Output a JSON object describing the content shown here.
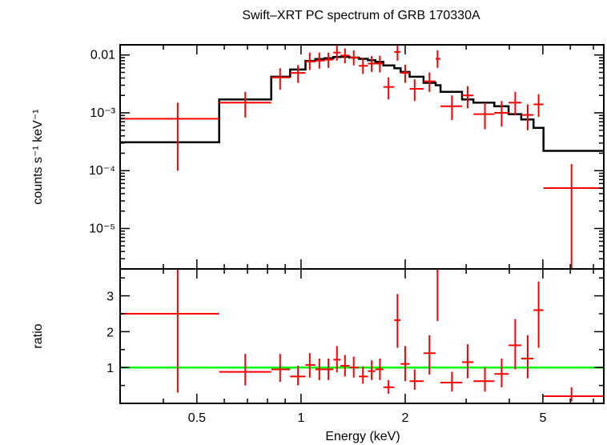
{
  "chart_data": [
    {
      "type": "scatter",
      "panel": "spectrum",
      "title": "Swift–XRT PC spectrum of GRB 170330A",
      "ylabel": "counts s⁻¹ keV⁻¹",
      "y_scale": "log",
      "x_scale": "log",
      "xlim": [
        0.3,
        7.5
      ],
      "ylim": [
        2e-06,
        0.015
      ],
      "y_ticks": [
        {
          "value": 1e-05,
          "label": "10⁻⁵"
        },
        {
          "value": 0.0001,
          "label": "10⁻⁴"
        },
        {
          "value": 0.001,
          "label": "10⁻³"
        },
        {
          "value": 0.01,
          "label": "0.01"
        }
      ],
      "data_color": "#ff0000",
      "model_color": "#000000",
      "data_points": [
        {
          "x": 0.44,
          "xlo": 0.3,
          "xhi": 0.58,
          "y": 0.00079,
          "ylo": 0.0001,
          "yhi": 0.0015
        },
        {
          "x": 0.69,
          "xlo": 0.58,
          "xhi": 0.82,
          "y": 0.0015,
          "ylo": 0.00083,
          "yhi": 0.0023
        },
        {
          "x": 0.87,
          "xlo": 0.82,
          "xhi": 0.93,
          "y": 0.0041,
          "ylo": 0.0025,
          "yhi": 0.0059
        },
        {
          "x": 0.98,
          "xlo": 0.93,
          "xhi": 1.03,
          "y": 0.0049,
          "ylo": 0.0033,
          "yhi": 0.0067
        },
        {
          "x": 1.06,
          "xlo": 1.03,
          "xhi": 1.1,
          "y": 0.0077,
          "ylo": 0.0055,
          "yhi": 0.011
        },
        {
          "x": 1.13,
          "xlo": 1.1,
          "xhi": 1.17,
          "y": 0.008,
          "ylo": 0.0058,
          "yhi": 0.011
        },
        {
          "x": 1.2,
          "xlo": 1.17,
          "xhi": 1.24,
          "y": 0.0083,
          "ylo": 0.006,
          "yhi": 0.011
        },
        {
          "x": 1.27,
          "xlo": 1.24,
          "xhi": 1.3,
          "y": 0.011,
          "ylo": 0.008,
          "yhi": 0.015
        },
        {
          "x": 1.34,
          "xlo": 1.3,
          "xhi": 1.38,
          "y": 0.0098,
          "ylo": 0.0072,
          "yhi": 0.013
        },
        {
          "x": 1.42,
          "xlo": 1.38,
          "xhi": 1.47,
          "y": 0.009,
          "ylo": 0.0066,
          "yhi": 0.012
        },
        {
          "x": 1.51,
          "xlo": 1.47,
          "xhi": 1.56,
          "y": 0.0065,
          "ylo": 0.0047,
          "yhi": 0.0088
        },
        {
          "x": 1.6,
          "xlo": 1.56,
          "xhi": 1.64,
          "y": 0.0071,
          "ylo": 0.0051,
          "yhi": 0.0096
        },
        {
          "x": 1.69,
          "xlo": 1.64,
          "xhi": 1.73,
          "y": 0.0071,
          "ylo": 0.005,
          "yhi": 0.0097
        },
        {
          "x": 1.79,
          "xlo": 1.73,
          "xhi": 1.86,
          "y": 0.0028,
          "ylo": 0.0017,
          "yhi": 0.0041
        },
        {
          "x": 1.9,
          "xlo": 1.86,
          "xhi": 1.94,
          "y": 0.0113,
          "ylo": 0.008,
          "yhi": 0.015
        },
        {
          "x": 2.0,
          "xlo": 1.94,
          "xhi": 2.06,
          "y": 0.0049,
          "ylo": 0.0033,
          "yhi": 0.0068
        },
        {
          "x": 2.13,
          "xlo": 2.06,
          "xhi": 2.26,
          "y": 0.0026,
          "ylo": 0.0016,
          "yhi": 0.0038
        },
        {
          "x": 2.35,
          "xlo": 2.26,
          "xhi": 2.45,
          "y": 0.0035,
          "ylo": 0.0023,
          "yhi": 0.005
        },
        {
          "x": 2.48,
          "xlo": 2.45,
          "xhi": 2.53,
          "y": 0.0086,
          "ylo": 0.006,
          "yhi": 0.012
        },
        {
          "x": 2.73,
          "xlo": 2.53,
          "xhi": 2.92,
          "y": 0.0013,
          "ylo": 0.00075,
          "yhi": 0.002
        },
        {
          "x": 3.03,
          "xlo": 2.92,
          "xhi": 3.15,
          "y": 0.002,
          "ylo": 0.0012,
          "yhi": 0.0029
        },
        {
          "x": 3.4,
          "xlo": 3.15,
          "xhi": 3.62,
          "y": 0.00095,
          "ylo": 0.00052,
          "yhi": 0.0015
        },
        {
          "x": 3.8,
          "xlo": 3.62,
          "xhi": 3.98,
          "y": 0.001,
          "ylo": 0.00058,
          "yhi": 0.0016
        },
        {
          "x": 4.16,
          "xlo": 3.98,
          "xhi": 4.33,
          "y": 0.0015,
          "ylo": 0.0009,
          "yhi": 0.0023
        },
        {
          "x": 4.52,
          "xlo": 4.33,
          "xhi": 4.7,
          "y": 0.00092,
          "ylo": 0.0005,
          "yhi": 0.0014
        },
        {
          "x": 4.86,
          "xlo": 4.7,
          "xhi": 5.02,
          "y": 0.0014,
          "ylo": 0.00085,
          "yhi": 0.0021
        },
        {
          "x": 6.05,
          "xlo": 5.02,
          "xhi": 7.5,
          "y": 5e-05,
          "ylo": 1e-06,
          "yhi": 0.00013
        }
      ],
      "model_steps": [
        {
          "xlo": 0.3,
          "xhi": 0.58,
          "y": 0.00031
        },
        {
          "xlo": 0.58,
          "xhi": 0.82,
          "y": 0.0017
        },
        {
          "xlo": 0.82,
          "xhi": 0.93,
          "y": 0.0042
        },
        {
          "xlo": 0.93,
          "xhi": 1.03,
          "y": 0.0056
        },
        {
          "xlo": 1.03,
          "xhi": 1.1,
          "y": 0.0079
        },
        {
          "xlo": 1.1,
          "xhi": 1.17,
          "y": 0.0085
        },
        {
          "xlo": 1.17,
          "xhi": 1.24,
          "y": 0.0088
        },
        {
          "xlo": 1.24,
          "xhi": 1.3,
          "y": 0.0092
        },
        {
          "xlo": 1.3,
          "xhi": 1.38,
          "y": 0.0093
        },
        {
          "xlo": 1.38,
          "xhi": 1.47,
          "y": 0.009
        },
        {
          "xlo": 1.47,
          "xhi": 1.56,
          "y": 0.0086
        },
        {
          "xlo": 1.56,
          "xhi": 1.64,
          "y": 0.0081
        },
        {
          "xlo": 1.64,
          "xhi": 1.73,
          "y": 0.0076
        },
        {
          "xlo": 1.73,
          "xhi": 1.86,
          "y": 0.0066
        },
        {
          "xlo": 1.86,
          "xhi": 1.94,
          "y": 0.0059
        },
        {
          "xlo": 1.94,
          "xhi": 2.06,
          "y": 0.0051
        },
        {
          "xlo": 2.06,
          "xhi": 2.26,
          "y": 0.0042
        },
        {
          "xlo": 2.26,
          "xhi": 2.45,
          "y": 0.0033
        },
        {
          "xlo": 2.45,
          "xhi": 2.53,
          "y": 0.003
        },
        {
          "xlo": 2.53,
          "xhi": 2.92,
          "y": 0.0023
        },
        {
          "xlo": 2.92,
          "xhi": 3.15,
          "y": 0.0017
        },
        {
          "xlo": 3.15,
          "xhi": 3.62,
          "y": 0.0015
        },
        {
          "xlo": 3.62,
          "xhi": 3.98,
          "y": 0.0013
        },
        {
          "xlo": 3.98,
          "xhi": 4.33,
          "y": 0.00095
        },
        {
          "xlo": 4.33,
          "xhi": 4.7,
          "y": 0.00077
        },
        {
          "xlo": 4.7,
          "xhi": 5.02,
          "y": 0.00055
        },
        {
          "xlo": 5.02,
          "xhi": 7.5,
          "y": 0.00022
        }
      ]
    },
    {
      "type": "scatter",
      "panel": "ratio",
      "ylabel": "ratio",
      "xlabel": "Energy (keV)",
      "x_scale": "log",
      "xlim": [
        0.3,
        7.5
      ],
      "ylim": [
        0,
        3.75
      ],
      "x_ticks": [
        {
          "value": 0.5,
          "label": "0.5"
        },
        {
          "value": 1,
          "label": "1"
        },
        {
          "value": 2,
          "label": "2"
        },
        {
          "value": 5,
          "label": "5"
        }
      ],
      "y_ticks": [
        {
          "value": 1,
          "label": "1"
        },
        {
          "value": 2,
          "label": "2"
        },
        {
          "value": 3,
          "label": "3"
        }
      ],
      "reference_line": {
        "y": 1,
        "color": "#00ff00"
      },
      "data_color": "#ff0000",
      "data_points": [
        {
          "x": 0.44,
          "xlo": 0.3,
          "xhi": 0.58,
          "y": 2.5,
          "ylo": 0.3,
          "yhi": 3.75
        },
        {
          "x": 0.69,
          "xlo": 0.58,
          "xhi": 0.82,
          "y": 0.88,
          "ylo": 0.5,
          "yhi": 1.38
        },
        {
          "x": 0.87,
          "xlo": 0.82,
          "xhi": 0.93,
          "y": 0.95,
          "ylo": 0.6,
          "yhi": 1.38
        },
        {
          "x": 0.98,
          "xlo": 0.93,
          "xhi": 1.03,
          "y": 0.75,
          "ylo": 0.5,
          "yhi": 1.05
        },
        {
          "x": 1.06,
          "xlo": 1.03,
          "xhi": 1.1,
          "y": 1.07,
          "ylo": 0.72,
          "yhi": 1.4
        },
        {
          "x": 1.13,
          "xlo": 1.1,
          "xhi": 1.17,
          "y": 0.95,
          "ylo": 0.65,
          "yhi": 1.25
        },
        {
          "x": 1.2,
          "xlo": 1.17,
          "xhi": 1.24,
          "y": 0.95,
          "ylo": 0.65,
          "yhi": 1.25
        },
        {
          "x": 1.27,
          "xlo": 1.24,
          "xhi": 1.3,
          "y": 1.22,
          "ylo": 0.87,
          "yhi": 1.6
        },
        {
          "x": 1.34,
          "xlo": 1.3,
          "xhi": 1.38,
          "y": 1.05,
          "ylo": 0.75,
          "yhi": 1.35
        },
        {
          "x": 1.42,
          "xlo": 1.38,
          "xhi": 1.47,
          "y": 1.0,
          "ylo": 0.72,
          "yhi": 1.3
        },
        {
          "x": 1.51,
          "xlo": 1.47,
          "xhi": 1.56,
          "y": 0.75,
          "ylo": 0.55,
          "yhi": 1.03
        },
        {
          "x": 1.6,
          "xlo": 1.56,
          "xhi": 1.64,
          "y": 0.9,
          "ylo": 0.65,
          "yhi": 1.2
        },
        {
          "x": 1.69,
          "xlo": 1.64,
          "xhi": 1.73,
          "y": 0.95,
          "ylo": 0.65,
          "yhi": 1.25
        },
        {
          "x": 1.79,
          "xlo": 1.73,
          "xhi": 1.86,
          "y": 0.45,
          "ylo": 0.27,
          "yhi": 0.65
        },
        {
          "x": 1.9,
          "xlo": 1.86,
          "xhi": 1.94,
          "y": 2.32,
          "ylo": 1.55,
          "yhi": 3.05
        },
        {
          "x": 2.0,
          "xlo": 1.94,
          "xhi": 2.06,
          "y": 1.1,
          "ylo": 0.62,
          "yhi": 1.6
        },
        {
          "x": 2.13,
          "xlo": 2.06,
          "xhi": 2.26,
          "y": 0.62,
          "ylo": 0.38,
          "yhi": 0.95
        },
        {
          "x": 2.35,
          "xlo": 2.26,
          "xhi": 2.45,
          "y": 1.4,
          "ylo": 0.8,
          "yhi": 1.9
        },
        {
          "x": 2.48,
          "xlo": 2.45,
          "xhi": 2.53,
          "y": 3.75,
          "ylo": 2.3,
          "yhi": 3.75
        },
        {
          "x": 2.73,
          "xlo": 2.53,
          "xhi": 2.92,
          "y": 0.58,
          "ylo": 0.33,
          "yhi": 0.88
        },
        {
          "x": 3.03,
          "xlo": 2.92,
          "xhi": 3.15,
          "y": 1.15,
          "ylo": 0.7,
          "yhi": 1.65
        },
        {
          "x": 3.4,
          "xlo": 3.15,
          "xhi": 3.62,
          "y": 0.62,
          "ylo": 0.33,
          "yhi": 1.0
        },
        {
          "x": 3.8,
          "xlo": 3.62,
          "xhi": 3.98,
          "y": 0.82,
          "ylo": 0.45,
          "yhi": 1.25
        },
        {
          "x": 4.16,
          "xlo": 3.98,
          "xhi": 4.33,
          "y": 1.62,
          "ylo": 0.95,
          "yhi": 2.35
        },
        {
          "x": 4.52,
          "xlo": 4.33,
          "xhi": 4.7,
          "y": 1.25,
          "ylo": 0.7,
          "yhi": 1.9
        },
        {
          "x": 4.86,
          "xlo": 4.7,
          "xhi": 5.02,
          "y": 2.6,
          "ylo": 1.55,
          "yhi": 3.4
        },
        {
          "x": 6.05,
          "xlo": 5.02,
          "xhi": 7.5,
          "y": 0.2,
          "ylo": 0.05,
          "yhi": 0.45
        }
      ]
    }
  ]
}
